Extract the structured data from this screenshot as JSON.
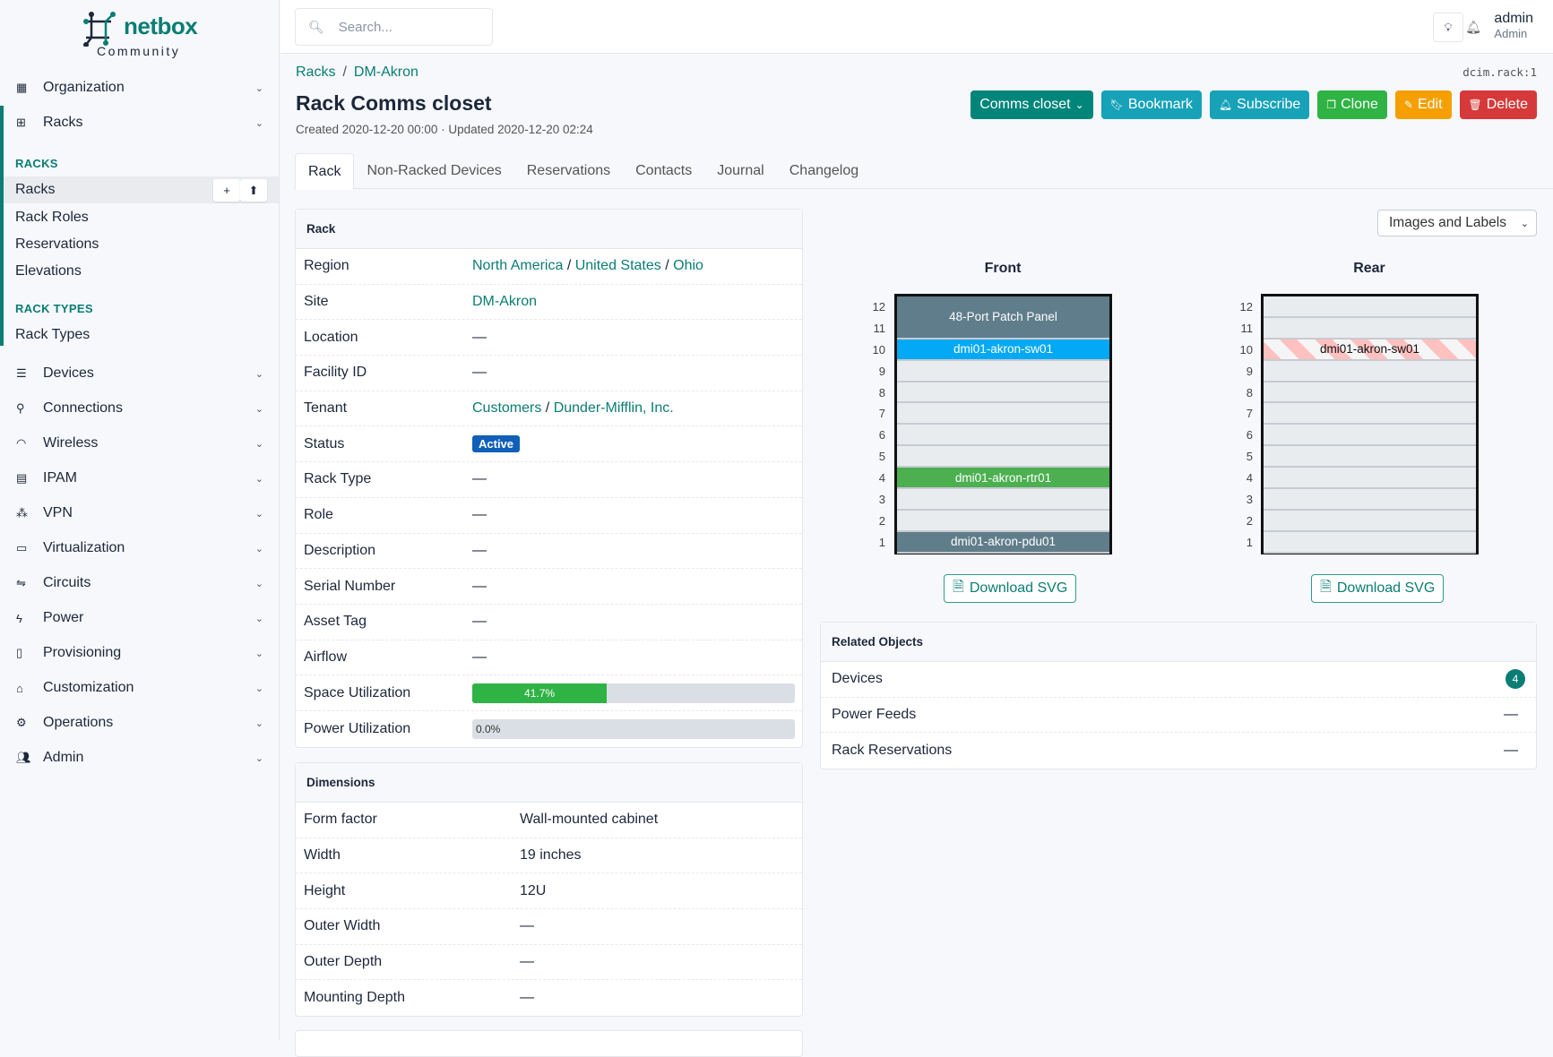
{
  "brand": {
    "name": "netbox",
    "edition": "Community"
  },
  "sidebar": {
    "top": [
      {
        "label": "Organization",
        "icon": "building-icon"
      },
      {
        "label": "Racks",
        "icon": "rack-icon"
      }
    ],
    "sections": [
      {
        "heading": "RACKS",
        "items": [
          "Racks",
          "Rack Roles",
          "Reservations",
          "Elevations"
        ]
      },
      {
        "heading": "RACK TYPES",
        "items": [
          "Rack Types"
        ]
      }
    ],
    "menus": [
      {
        "label": "Devices",
        "icon": "server-icon"
      },
      {
        "label": "Connections",
        "icon": "plug-icon"
      },
      {
        "label": "Wireless",
        "icon": "wifi-icon"
      },
      {
        "label": "IPAM",
        "icon": "ip-icon"
      },
      {
        "label": "VPN",
        "icon": "vpn-icon"
      },
      {
        "label": "Virtualization",
        "icon": "monitor-icon"
      },
      {
        "label": "Circuits",
        "icon": "circuit-icon"
      },
      {
        "label": "Power",
        "icon": "bolt-icon"
      },
      {
        "label": "Provisioning",
        "icon": "file-icon"
      },
      {
        "label": "Customization",
        "icon": "toolbox-icon"
      },
      {
        "label": "Operations",
        "icon": "cogs-icon"
      },
      {
        "label": "Admin",
        "icon": "users-icon"
      }
    ],
    "add_icon": "+",
    "import_icon": "⬆"
  },
  "header": {
    "search_placeholder": "Search...",
    "user": "admin",
    "role": "Admin"
  },
  "breadcrumb": [
    "Racks",
    "DM-Akron"
  ],
  "object_id": "dcim.rack:1",
  "title": "Rack Comms closet",
  "meta": "Created 2020-12-20 00:00 · Updated 2020-12-20 02:24",
  "actions": [
    {
      "label": "Comms closet",
      "color": "#00857a",
      "icon": "chevron-down-icon"
    },
    {
      "label": "Bookmark",
      "color": "#17a2b8",
      "icon": "bookmark-icon"
    },
    {
      "label": "Subscribe",
      "color": "#17a2b8",
      "icon": "bell-plus-icon"
    },
    {
      "label": "Clone",
      "color": "#2fb344",
      "icon": "copy-icon"
    },
    {
      "label": "Edit",
      "color": "#f59f00",
      "icon": "pencil-icon"
    },
    {
      "label": "Delete",
      "color": "#d63939",
      "icon": "trash-icon"
    }
  ],
  "tabs": [
    "Rack",
    "Non-Racked Devices",
    "Reservations",
    "Contacts",
    "Journal",
    "Changelog"
  ],
  "rack_card": {
    "title": "Rack",
    "region": [
      "North America",
      "United States",
      "Ohio"
    ],
    "site": "DM-Akron",
    "tenant": [
      "Customers",
      "Dunder-Mifflin, Inc."
    ],
    "status": "Active",
    "labels": {
      "region": "Region",
      "site": "Site",
      "location": "Location",
      "facility": "Facility ID",
      "tenant": "Tenant",
      "status": "Status",
      "rack_type": "Rack Type",
      "role": "Role",
      "description": "Description",
      "serial": "Serial Number",
      "asset": "Asset Tag",
      "airflow": "Airflow",
      "space": "Space Utilization",
      "power": "Power Utilization"
    },
    "empty": "—",
    "space_utilization": 41.7,
    "space_text": "41.7%",
    "power_utilization": 0.0,
    "power_text": "0.0%"
  },
  "dimensions": {
    "title": "Dimensions",
    "rows": [
      [
        "Form factor",
        "Wall-mounted cabinet"
      ],
      [
        "Width",
        "19 inches"
      ],
      [
        "Height",
        "12U"
      ],
      [
        "Outer Width",
        "—"
      ],
      [
        "Outer Depth",
        "—"
      ],
      [
        "Mounting Depth",
        "—"
      ]
    ]
  },
  "elevation": {
    "view": "Images and Labels",
    "front_label": "Front",
    "rear_label": "Rear",
    "units": 12,
    "front": [
      {
        "name": "48-Port Patch Panel",
        "top": 12,
        "height": 2,
        "color": "#607d8b"
      },
      {
        "name": "dmi01-akron-sw01",
        "top": 10,
        "height": 1,
        "color": "#03a9f4"
      },
      {
        "name": "dmi01-akron-rtr01",
        "top": 4,
        "height": 1,
        "color": "#4caf50"
      },
      {
        "name": "dmi01-akron-pdu01",
        "top": 1,
        "height": 1,
        "color": "#607d8b"
      }
    ],
    "rear": [
      {
        "name": "dmi01-akron-sw01",
        "top": 10,
        "height": 1,
        "striped": true
      }
    ],
    "download_label": "Download SVG"
  },
  "related": {
    "title": "Related Objects",
    "rows": [
      {
        "label": "Devices",
        "count": "4"
      },
      {
        "label": "Power Feeds",
        "count": "—"
      },
      {
        "label": "Rack Reservations",
        "count": "—"
      }
    ]
  }
}
